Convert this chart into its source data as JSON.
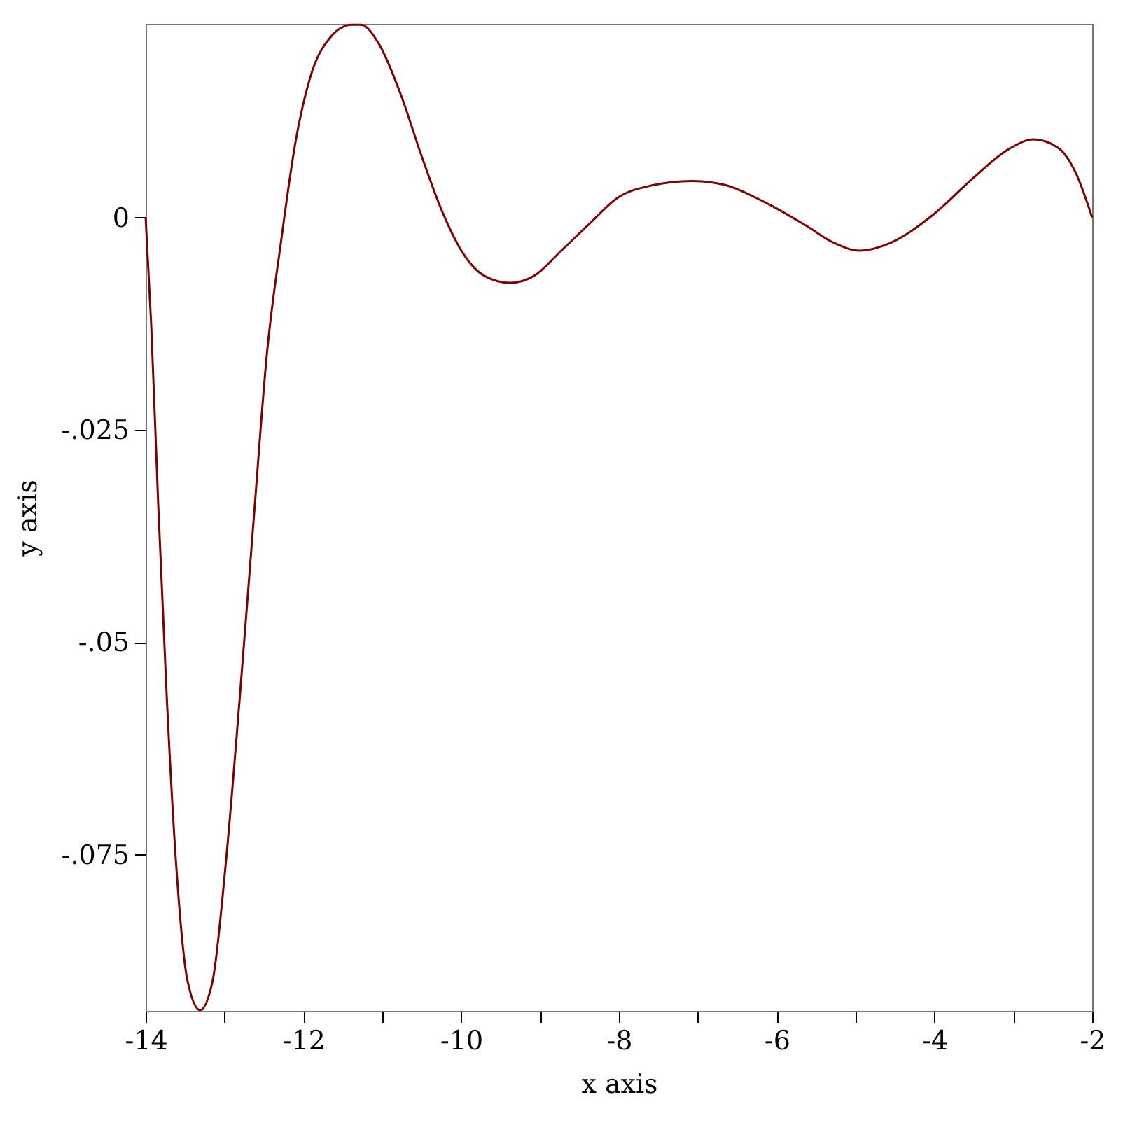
{
  "chart_data": {
    "type": "line",
    "xlabel": "x axis",
    "ylabel": "y axis",
    "x": [
      -14,
      -13.93,
      -13.84,
      -13.73,
      -13.61,
      -13.47,
      -13.31,
      -13.15,
      -12.99,
      -12.81,
      -12.63,
      -12.46,
      -12.28,
      -12.1,
      -11.92,
      -11.66,
      -11.39,
      -11.27,
      -11.04,
      -10.77,
      -10.5,
      -10.24,
      -9.97,
      -9.7,
      -9.38,
      -9.08,
      -8.73,
      -8.37,
      -8.02,
      -7.57,
      -7.08,
      -6.69,
      -6.15,
      -5.62,
      -5.27,
      -4.95,
      -4.56,
      -4.02,
      -3.49,
      -3.05,
      -2.745,
      -2.43,
      -2.21,
      -2
    ],
    "series": [
      {
        "color": "#800000",
        "values": [
          0,
          -0.0125,
          -0.0339,
          -0.0569,
          -0.0766,
          -0.0898,
          -0.0933,
          -0.0898,
          -0.0766,
          -0.0569,
          -0.0355,
          -0.0158,
          -0.0026,
          0.0089,
          0.0163,
          0.0212,
          0.0227,
          0.0227,
          0.0204,
          0.0146,
          0.0072,
          0.0007,
          -0.0043,
          -0.0069,
          -0.0077,
          -0.0069,
          -0.0039,
          -0.0007,
          0.0023,
          0.0038,
          0.0043,
          0.0039,
          0.0018,
          -0.001,
          -0.003,
          -0.0039,
          -0.003,
          0.0003,
          0.0048,
          0.0081,
          0.0092,
          0.0082,
          0.0053,
          0
        ]
      }
    ],
    "xlim": [
      -14,
      -2
    ],
    "xticks": [
      -14,
      {
        "value": -13,
        "label": null
      },
      -12,
      {
        "value": -11,
        "label": null
      },
      -10,
      {
        "value": -9,
        "label": null
      },
      -8,
      {
        "value": -7,
        "label": null
      },
      -6,
      {
        "value": -5,
        "label": null
      },
      -4,
      {
        "value": -3,
        "label": null
      },
      -2
    ],
    "ylim": [
      -0.0934,
      0.0228
    ],
    "yticks": [
      {
        "value": -0.075,
        "label": "-.075"
      },
      {
        "value": -0.05,
        "label": "-.05"
      },
      {
        "value": -0.025,
        "label": "-.025"
      },
      0
    ],
    "grid": false,
    "line_style": "solid"
  }
}
